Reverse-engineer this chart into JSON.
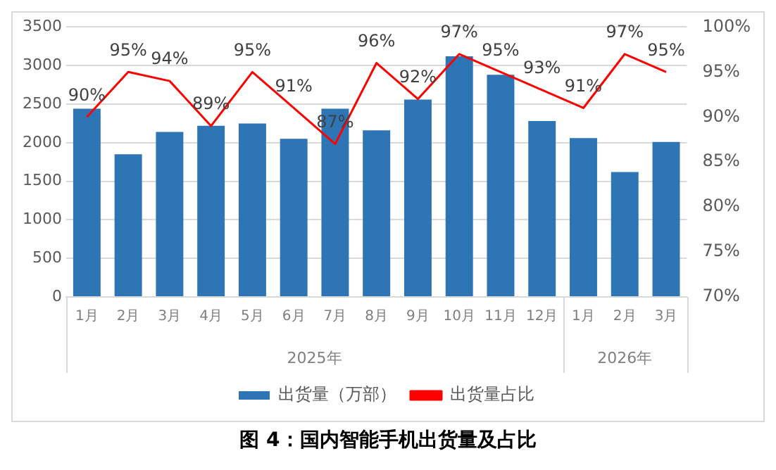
{
  "chart_data": {
    "type": "bar",
    "title": "图 4：国内智能手机出货量及占比",
    "categories": [
      "1月",
      "2月",
      "3月",
      "4月",
      "5月",
      "6月",
      "7月",
      "8月",
      "9月",
      "10月",
      "11月",
      "12月",
      "1月",
      "2月",
      "3月"
    ],
    "series": [
      {
        "name": "出货量（万部）",
        "color": "#2e75b6",
        "values": [
          2440,
          1850,
          2140,
          2220,
          2250,
          2050,
          2440,
          2160,
          2560,
          3120,
          2880,
          2280,
          2060,
          1620,
          2010
        ]
      },
      {
        "name": "出货量占比",
        "type": "line",
        "axis": "y2",
        "color": "#ff0000",
        "marker": "none",
        "values": [
          90,
          95,
          94,
          89,
          95,
          91,
          87,
          96,
          92,
          97,
          95,
          93,
          91,
          97,
          95
        ],
        "value_labels": [
          "90%",
          "95%",
          "94%",
          "89%",
          "95%",
          "91%",
          "87%",
          "96%",
          "92%",
          "97%",
          "95%",
          "93%",
          "91%",
          "97%",
          "95%"
        ]
      }
    ],
    "ylim": [
      0,
      3500
    ],
    "yticks": [
      0,
      500,
      1000,
      1500,
      2000,
      2500,
      3000,
      3500
    ],
    "y2lim": [
      70,
      100
    ],
    "y2ticks": [
      {
        "value": 70,
        "label": "70%"
      },
      {
        "value": 75,
        "label": "75%"
      },
      {
        "value": 80,
        "label": "80%"
      },
      {
        "value": 85,
        "label": "85%"
      },
      {
        "value": 90,
        "label": "90%"
      },
      {
        "value": 95,
        "label": "95%"
      },
      {
        "value": 100,
        "label": "100%"
      }
    ],
    "grid": "y",
    "legend": "bottom",
    "annotations": [
      "2025年",
      "2026年"
    ]
  }
}
